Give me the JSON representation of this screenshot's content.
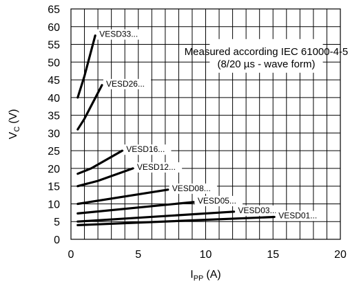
{
  "chart_data": {
    "type": "line",
    "xlabel": "I",
    "xlabel_sub": "PP",
    "xlabel_unit": "(A)",
    "ylabel": "V",
    "ylabel_sub": "C",
    "ylabel_unit": "(V)",
    "xlim": [
      0,
      20
    ],
    "ylim": [
      0,
      65
    ],
    "x_ticks": [
      0,
      5,
      10,
      15,
      20
    ],
    "y_ticks": [
      0,
      5,
      10,
      15,
      20,
      25,
      30,
      35,
      40,
      45,
      50,
      55,
      60,
      65
    ],
    "grid": true,
    "annotation_line1": "Measured according IEC 61000-4-5",
    "annotation_line2": "(8/20 µs - wave form)",
    "series": [
      {
        "name": "VESD33...",
        "x": [
          0.5,
          1.0,
          1.8
        ],
        "y": [
          40,
          46,
          57.5
        ]
      },
      {
        "name": "VESD26...",
        "x": [
          0.5,
          1.0,
          2.3
        ],
        "y": [
          31,
          34,
          43.5
        ]
      },
      {
        "name": "VESD16...",
        "x": [
          0.5,
          1.5,
          3.8
        ],
        "y": [
          18.5,
          20,
          25
        ]
      },
      {
        "name": "VESD12...",
        "x": [
          0.5,
          2.0,
          4.6
        ],
        "y": [
          15,
          16.5,
          20
        ]
      },
      {
        "name": "VESD08...",
        "x": [
          0.5,
          7.2
        ],
        "y": [
          10,
          14
        ]
      },
      {
        "name": "VESD05...",
        "x": [
          0.5,
          9.1
        ],
        "y": [
          7.3,
          10.5
        ]
      },
      {
        "name": "VESD03...",
        "x": [
          0.5,
          12.1
        ],
        "y": [
          5,
          7.8
        ]
      },
      {
        "name": "VESD01...",
        "x": [
          0.5,
          15.1
        ],
        "y": [
          4,
          6.3
        ]
      }
    ]
  }
}
